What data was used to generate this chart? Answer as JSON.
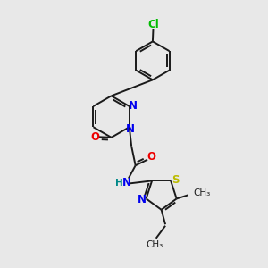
{
  "bg_color": "#e8e8e8",
  "bond_color": "#1a1a1a",
  "N_color": "#0000ee",
  "O_color": "#ee0000",
  "S_color": "#bbbb00",
  "Cl_color": "#00bb00",
  "H_color": "#008888",
  "font_size": 8.5,
  "small_font": 7.5,
  "line_width": 1.4,
  "figsize": [
    3.0,
    3.0
  ],
  "dpi": 100,
  "xlim": [
    0,
    10
  ],
  "ylim": [
    0,
    10
  ]
}
